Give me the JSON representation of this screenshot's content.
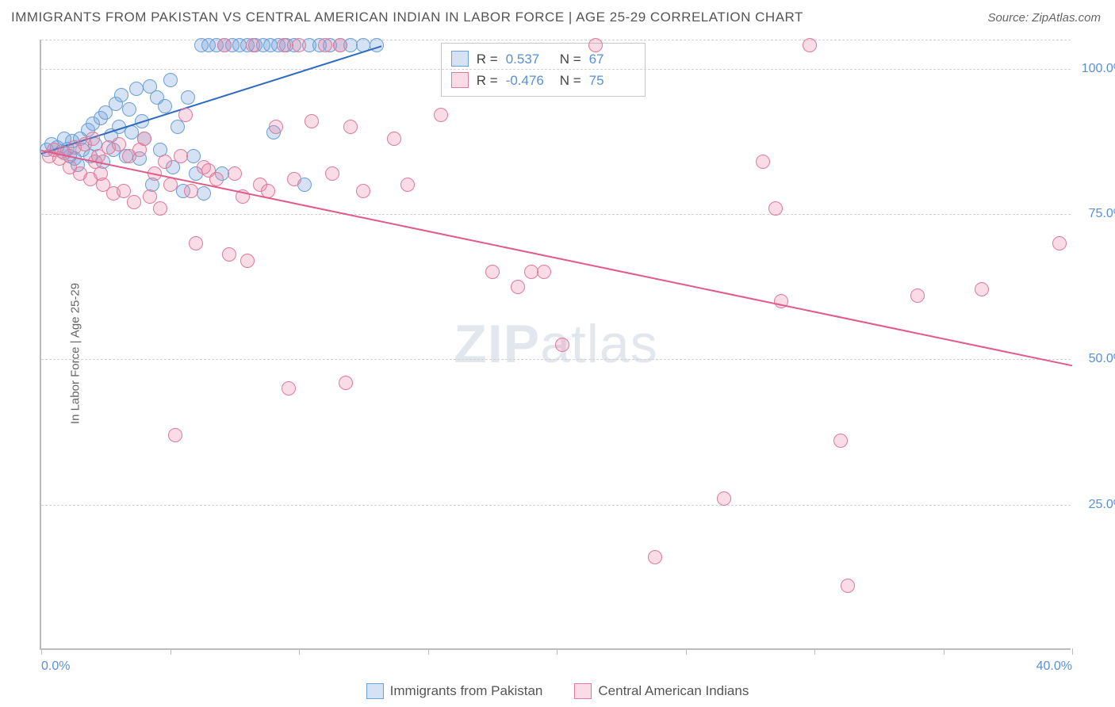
{
  "title": "IMMIGRANTS FROM PAKISTAN VS CENTRAL AMERICAN INDIAN IN LABOR FORCE | AGE 25-29 CORRELATION CHART",
  "source_label": "Source: ZipAtlas.com",
  "ylabel": "In Labor Force | Age 25-29",
  "watermark_a": "ZIP",
  "watermark_b": "atlas",
  "chart": {
    "type": "scatter",
    "xlim": [
      0,
      40
    ],
    "ylim": [
      0,
      105
    ],
    "x_ticks": [
      0,
      5,
      10,
      15,
      20,
      25,
      30,
      35,
      40
    ],
    "x_tick_labels": {
      "0": "0.0%",
      "40": "40.0%"
    },
    "y_gridlines": [
      25,
      50,
      75,
      100,
      105
    ],
    "y_tick_labels": {
      "25": "25.0%",
      "50": "50.0%",
      "75": "75.0%",
      "100": "100.0%"
    },
    "background_color": "#ffffff",
    "grid_color": "#d2d2d2",
    "axis_color": "#bcbcbc",
    "tick_label_color": "#5a8fd6",
    "point_radius": 9,
    "series": [
      {
        "name": "Immigrants from Pakistan",
        "color_fill": "rgba(120,165,220,0.32)",
        "color_stroke": "#6a9fd8",
        "trend_color": "#2e6bc0",
        "r_label": "R =",
        "r_value": "0.537",
        "n_label": "N =",
        "n_value": "67",
        "trend": {
          "x1": 0,
          "y1": 85.5,
          "x2": 13.2,
          "y2": 104
        },
        "points": [
          [
            0.2,
            86
          ],
          [
            0.4,
            87
          ],
          [
            0.6,
            86.5
          ],
          [
            0.8,
            85.8
          ],
          [
            1.0,
            86.2
          ],
          [
            1.2,
            87.5
          ],
          [
            1.3,
            84.5
          ],
          [
            1.5,
            88
          ],
          [
            1.6,
            86
          ],
          [
            1.8,
            89.5
          ],
          [
            1.9,
            85
          ],
          [
            2.0,
            90.5
          ],
          [
            2.1,
            87
          ],
          [
            2.3,
            91.5
          ],
          [
            2.4,
            84
          ],
          [
            2.5,
            92.5
          ],
          [
            2.7,
            88.5
          ],
          [
            2.8,
            86
          ],
          [
            2.9,
            94
          ],
          [
            3.0,
            90
          ],
          [
            3.1,
            95.5
          ],
          [
            3.3,
            85
          ],
          [
            3.4,
            93
          ],
          [
            3.5,
            89
          ],
          [
            3.7,
            96.5
          ],
          [
            3.8,
            84.5
          ],
          [
            3.9,
            91
          ],
          [
            4.0,
            88
          ],
          [
            4.2,
            97
          ],
          [
            4.3,
            80
          ],
          [
            4.5,
            95
          ],
          [
            4.6,
            86
          ],
          [
            4.8,
            93.5
          ],
          [
            5.0,
            98
          ],
          [
            5.1,
            83
          ],
          [
            5.3,
            90
          ],
          [
            5.5,
            79
          ],
          [
            5.7,
            95
          ],
          [
            5.9,
            85
          ],
          [
            6.0,
            82
          ],
          [
            6.2,
            104
          ],
          [
            6.3,
            78.5
          ],
          [
            6.5,
            104
          ],
          [
            6.8,
            104
          ],
          [
            7.0,
            82
          ],
          [
            7.1,
            104
          ],
          [
            7.4,
            104
          ],
          [
            7.7,
            104
          ],
          [
            8.0,
            104
          ],
          [
            8.3,
            104
          ],
          [
            8.6,
            104
          ],
          [
            8.9,
            104
          ],
          [
            9.0,
            89
          ],
          [
            9.2,
            104
          ],
          [
            9.5,
            104
          ],
          [
            9.8,
            104
          ],
          [
            10.2,
            80
          ],
          [
            10.4,
            104
          ],
          [
            10.8,
            104
          ],
          [
            11.2,
            104
          ],
          [
            11.6,
            104
          ],
          [
            12.0,
            104
          ],
          [
            12.5,
            104
          ],
          [
            13.0,
            104
          ],
          [
            1.1,
            85
          ],
          [
            1.4,
            83.5
          ],
          [
            0.9,
            88
          ]
        ]
      },
      {
        "name": "Central American Indians",
        "color_fill": "rgba(235,130,160,0.28)",
        "color_stroke": "#e07a9a",
        "trend_color": "#e35a87",
        "r_label": "R =",
        "r_value": "-0.476",
        "n_label": "N =",
        "n_value": "75",
        "trend": {
          "x1": 0,
          "y1": 86,
          "x2": 40,
          "y2": 49
        },
        "points": [
          [
            0.3,
            85
          ],
          [
            0.5,
            86
          ],
          [
            0.7,
            84.5
          ],
          [
            0.9,
            85.5
          ],
          [
            1.1,
            83
          ],
          [
            1.3,
            86.5
          ],
          [
            1.5,
            82
          ],
          [
            1.7,
            87
          ],
          [
            1.9,
            81
          ],
          [
            2.0,
            88
          ],
          [
            2.2,
            85
          ],
          [
            2.4,
            80
          ],
          [
            2.6,
            86.5
          ],
          [
            2.8,
            78.5
          ],
          [
            3.0,
            87
          ],
          [
            3.2,
            79
          ],
          [
            3.4,
            85
          ],
          [
            3.6,
            77
          ],
          [
            3.8,
            86
          ],
          [
            4.0,
            88
          ],
          [
            4.2,
            78
          ],
          [
            4.4,
            82
          ],
          [
            4.6,
            76
          ],
          [
            4.8,
            84
          ],
          [
            5.0,
            80
          ],
          [
            5.2,
            37
          ],
          [
            5.4,
            85
          ],
          [
            5.6,
            92
          ],
          [
            5.8,
            79
          ],
          [
            6.0,
            70
          ],
          [
            6.3,
            83
          ],
          [
            6.5,
            82.5
          ],
          [
            6.8,
            81
          ],
          [
            7.1,
            104
          ],
          [
            7.3,
            68
          ],
          [
            7.5,
            82
          ],
          [
            7.8,
            78
          ],
          [
            8.0,
            67
          ],
          [
            8.2,
            104
          ],
          [
            8.5,
            80
          ],
          [
            8.8,
            79
          ],
          [
            9.1,
            90
          ],
          [
            9.4,
            104
          ],
          [
            9.6,
            45
          ],
          [
            9.8,
            81
          ],
          [
            10.0,
            104
          ],
          [
            10.5,
            91
          ],
          [
            11.0,
            104
          ],
          [
            11.3,
            82
          ],
          [
            11.6,
            104
          ],
          [
            11.8,
            46
          ],
          [
            12.0,
            90
          ],
          [
            12.5,
            79
          ],
          [
            13.7,
            88
          ],
          [
            14.2,
            80
          ],
          [
            15.5,
            92
          ],
          [
            17.5,
            65
          ],
          [
            18.5,
            62.5
          ],
          [
            19.0,
            65
          ],
          [
            19.5,
            65
          ],
          [
            20.2,
            52.5
          ],
          [
            21.5,
            104
          ],
          [
            23.8,
            16
          ],
          [
            26.5,
            26
          ],
          [
            28.0,
            84
          ],
          [
            28.5,
            76
          ],
          [
            28.7,
            60
          ],
          [
            29.8,
            104
          ],
          [
            31.0,
            36
          ],
          [
            31.3,
            11
          ],
          [
            34.0,
            61
          ],
          [
            36.5,
            62
          ],
          [
            39.5,
            70
          ],
          [
            2.1,
            84
          ],
          [
            2.3,
            82
          ]
        ]
      }
    ]
  },
  "legend": {
    "items": [
      {
        "label": "Immigrants from Pakistan"
      },
      {
        "label": "Central American Indians"
      }
    ]
  }
}
